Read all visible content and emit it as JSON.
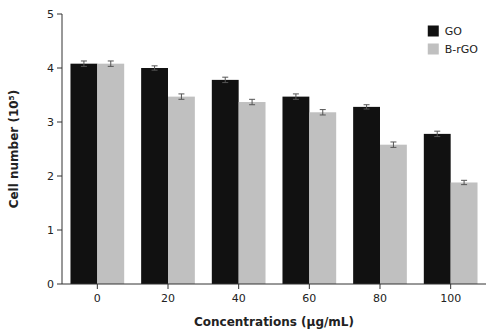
{
  "chart_data": {
    "type": "bar",
    "xlabel": "Concentrations (μg/mL)",
    "ylabel": "Cell number (10⁵)",
    "categories": [
      "0",
      "20",
      "40",
      "60",
      "80",
      "100"
    ],
    "series": [
      {
        "name": "GO",
        "color": "#111111",
        "values": [
          4.08,
          4.0,
          3.78,
          3.47,
          3.28,
          2.78
        ],
        "errors": [
          0.05,
          0.04,
          0.05,
          0.05,
          0.04,
          0.05
        ]
      },
      {
        "name": "B-rGO",
        "color": "#c0c0c0",
        "values": [
          4.08,
          3.47,
          3.37,
          3.18,
          2.58,
          1.88
        ],
        "errors": [
          0.05,
          0.05,
          0.05,
          0.05,
          0.05,
          0.04
        ]
      }
    ],
    "ylim": [
      0,
      5
    ],
    "yticks": [
      0,
      1,
      2,
      3,
      4,
      5
    ],
    "grid": false,
    "legend": "upper right"
  }
}
